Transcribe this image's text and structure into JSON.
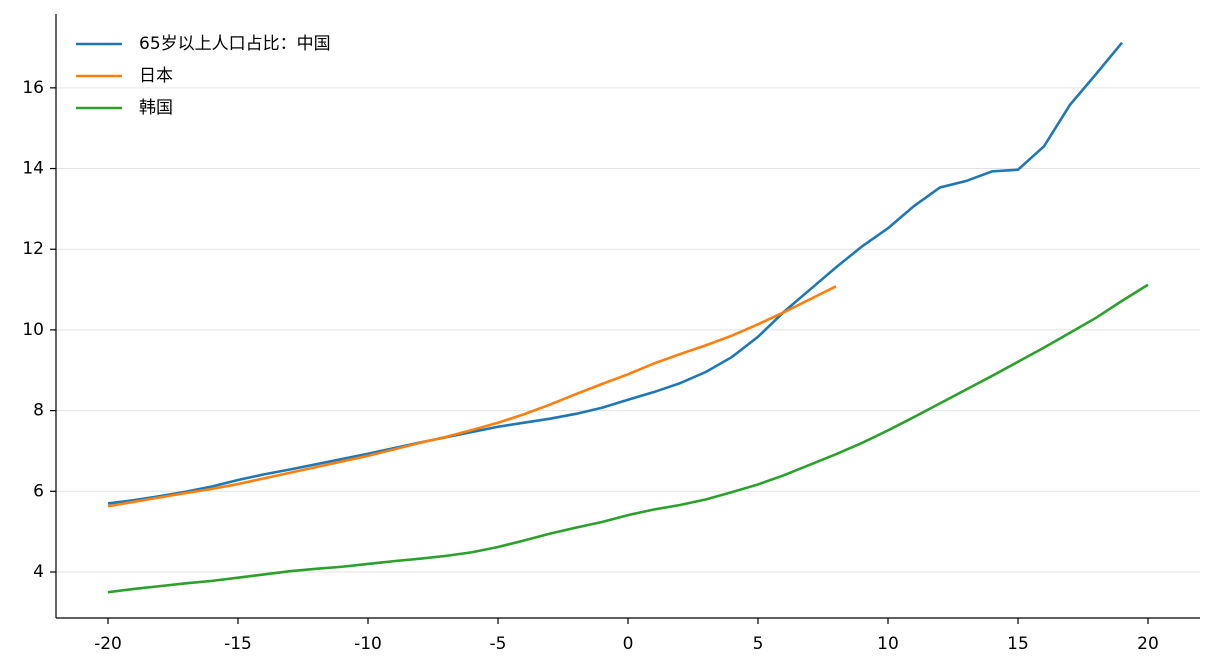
{
  "chart_data": {
    "type": "line",
    "x": [
      -20,
      -19,
      -18,
      -17,
      -16,
      -15,
      -14,
      -13,
      -12,
      -11,
      -10,
      -9,
      -8,
      -7,
      -6,
      -5,
      -4,
      -3,
      -2,
      -1,
      0,
      1,
      2,
      3,
      4,
      5,
      6,
      7,
      8,
      9,
      10,
      11,
      12,
      13,
      14,
      15,
      16,
      17,
      18,
      19,
      20
    ],
    "series": [
      {
        "name": "65岁以上人口占比：中国",
        "color": "#1f77b4",
        "values": [
          5.7,
          5.78,
          5.88,
          5.99,
          6.12,
          6.28,
          6.42,
          6.54,
          6.67,
          6.8,
          6.93,
          7.07,
          7.21,
          7.34,
          7.47,
          7.6,
          7.7,
          7.8,
          7.92,
          8.07,
          8.27,
          8.46,
          8.68,
          8.96,
          9.33,
          9.83,
          10.45,
          11.0,
          11.55,
          12.07,
          12.52,
          13.07,
          13.53,
          13.69,
          13.93,
          13.97,
          14.55,
          15.58,
          16.34,
          17.12,
          null
        ]
      },
      {
        "name": "日本",
        "color": "#ff7f0e",
        "values": [
          5.63,
          5.74,
          5.85,
          5.96,
          6.06,
          6.18,
          6.32,
          6.46,
          6.6,
          6.74,
          6.88,
          7.04,
          7.2,
          7.35,
          7.52,
          7.7,
          7.91,
          8.15,
          8.41,
          8.66,
          8.9,
          9.17,
          9.4,
          9.62,
          9.86,
          10.14,
          10.44,
          10.76,
          11.08,
          null,
          null,
          null,
          null,
          null,
          null,
          null,
          null,
          null,
          null,
          null,
          null
        ]
      },
      {
        "name": "韩国",
        "color": "#2ca02c",
        "values": [
          3.5,
          3.58,
          3.65,
          3.72,
          3.78,
          3.86,
          3.94,
          4.02,
          4.08,
          4.13,
          4.2,
          4.27,
          4.33,
          4.4,
          4.49,
          4.62,
          4.78,
          4.95,
          5.1,
          5.24,
          5.41,
          5.55,
          5.66,
          5.8,
          5.98,
          6.17,
          6.4,
          6.66,
          6.92,
          7.2,
          7.51,
          7.84,
          8.18,
          8.52,
          8.86,
          9.21,
          9.56,
          9.93,
          10.3,
          10.72,
          11.12
        ]
      }
    ],
    "xlim": [
      -22,
      22
    ],
    "ylim": [
      2.86,
      17.83
    ],
    "xticks": [
      -20,
      -15,
      -10,
      -5,
      0,
      5,
      10,
      15,
      20
    ],
    "yticks": [
      4,
      6,
      8,
      10,
      12,
      14,
      16
    ],
    "grid": true,
    "legend": "upper-left"
  }
}
